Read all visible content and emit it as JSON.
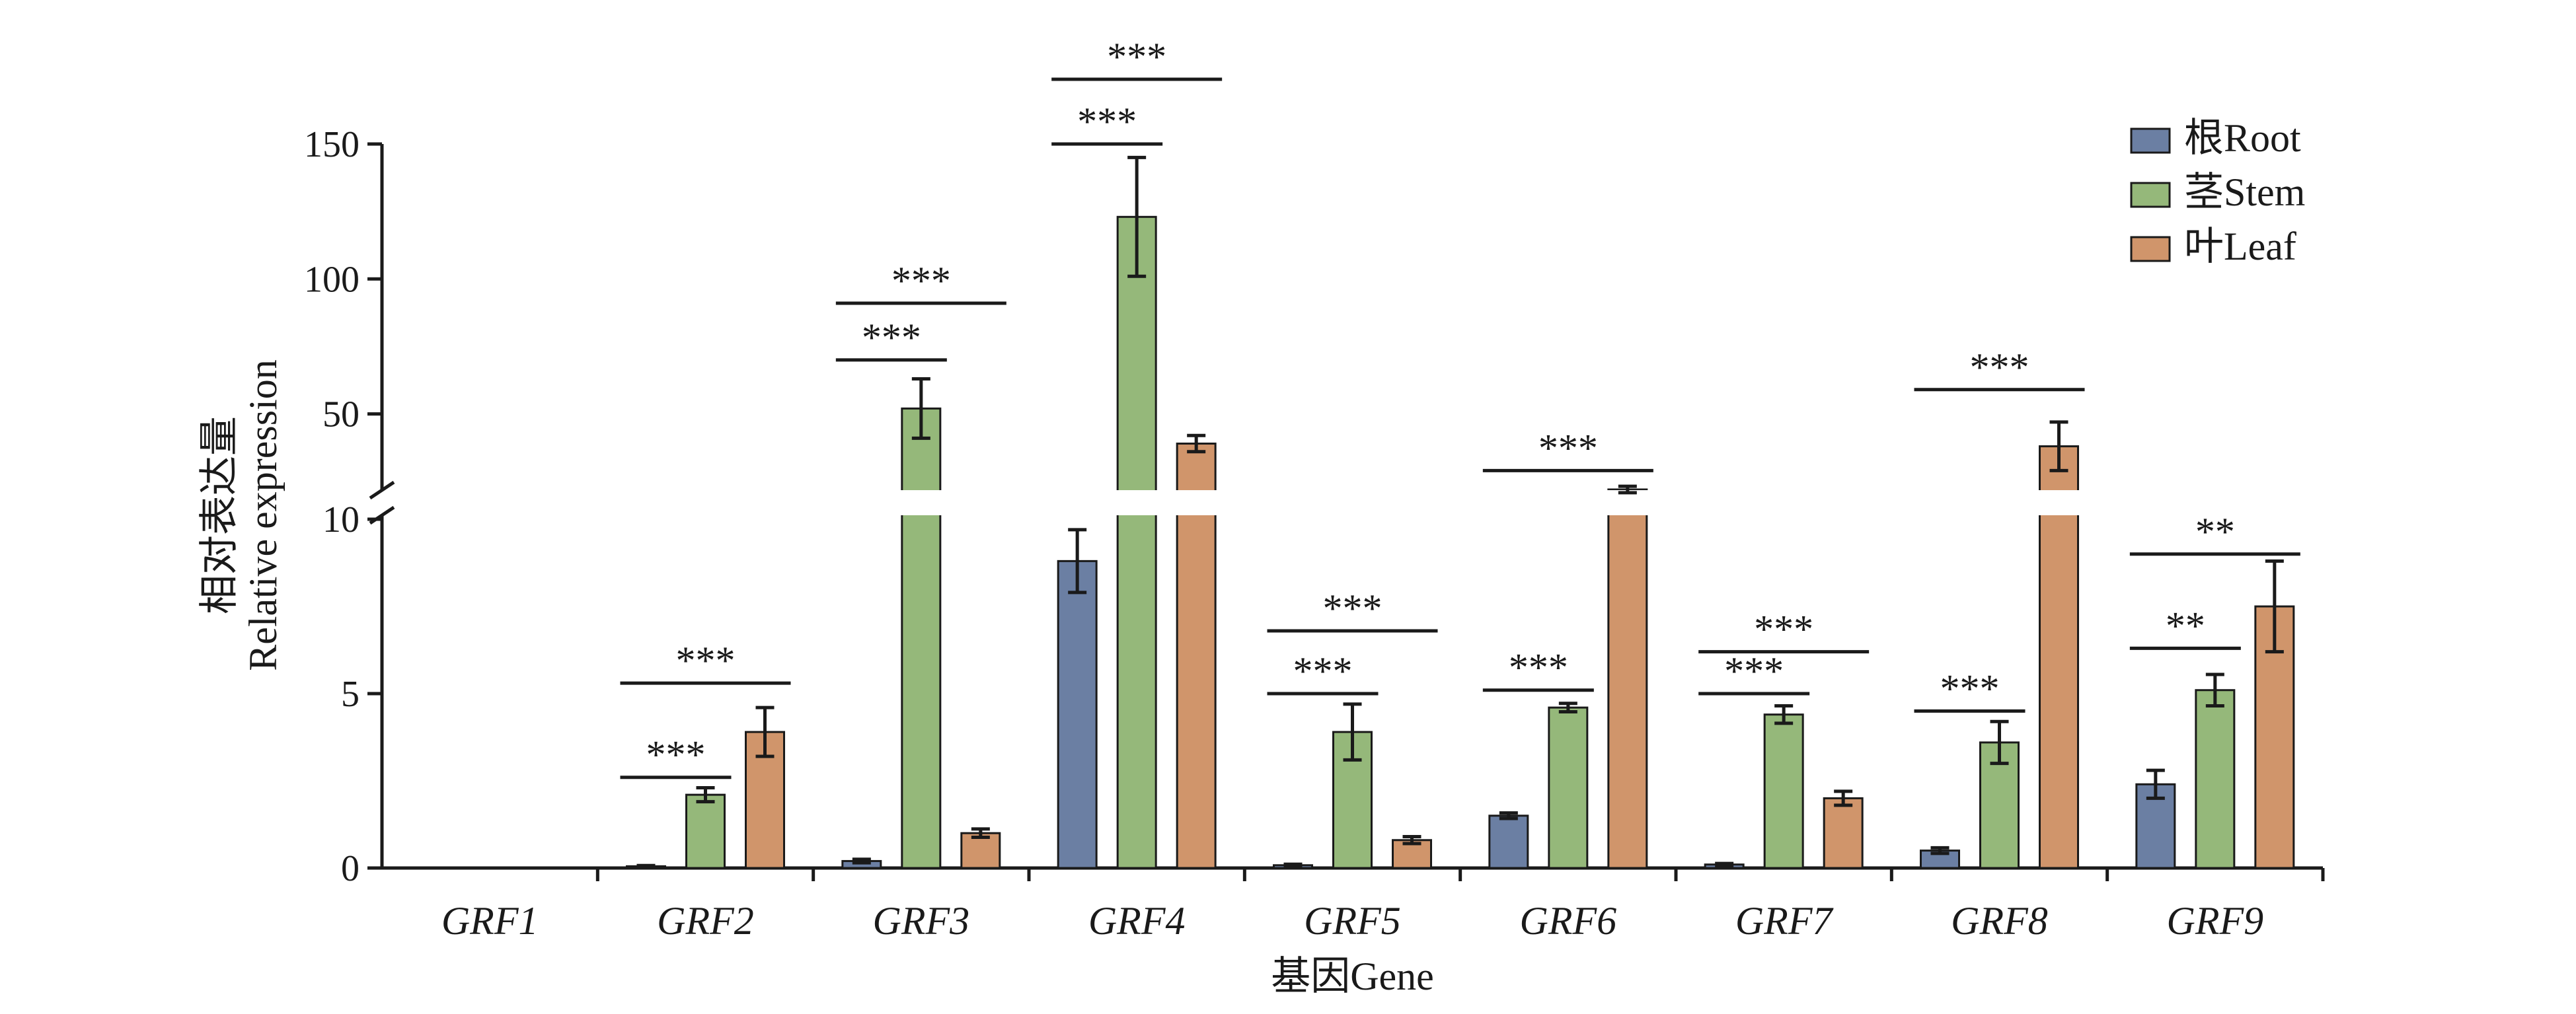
{
  "chart_data": {
    "type": "bar",
    "xlabel": "基因Gene",
    "ylabel_cn": "相对表达量",
    "ylabel_en": "Relative expression",
    "categories": [
      "GRF1",
      "GRF2",
      "GRF3",
      "GRF4",
      "GRF5",
      "GRF6",
      "GRF7",
      "GRF8",
      "GRF9"
    ],
    "y_axis": {
      "broken": true,
      "lower_range": [
        0,
        10
      ],
      "upper_range": [
        10,
        150
      ],
      "upper_ticks_shown": [
        50,
        100,
        150
      ],
      "lower_ticks": [
        0,
        5,
        10
      ],
      "tick_labels": [
        "0",
        "5",
        "10",
        "50",
        "100",
        "150"
      ]
    },
    "series": [
      {
        "name": "根Root",
        "color": "#6b7fa3",
        "values": [
          0,
          0.05,
          0.2,
          8.8,
          0.08,
          1.5,
          0.1,
          0.5,
          2.4
        ],
        "errors": [
          0,
          0.02,
          0.05,
          0.9,
          0.03,
          0.08,
          0.03,
          0.08,
          0.4
        ]
      },
      {
        "name": "茎Stem",
        "color": "#95b87a",
        "values": [
          0,
          2.1,
          52,
          123,
          3.9,
          4.6,
          4.4,
          3.6,
          5.1
        ],
        "errors": [
          0,
          0.2,
          11,
          22,
          0.8,
          0.12,
          0.25,
          0.6,
          0.45
        ]
      },
      {
        "name": "叶Leaf",
        "color": "#d0956b",
        "values": [
          0,
          3.9,
          1.0,
          39,
          0.8,
          22,
          2.0,
          38,
          7.5
        ],
        "errors": [
          0,
          0.7,
          0.12,
          3,
          0.1,
          1.2,
          0.2,
          9,
          1.3
        ]
      }
    ],
    "significance": [
      {
        "category": 1,
        "from": 0,
        "to": 1,
        "label": "***",
        "level_value": 2.6
      },
      {
        "category": 1,
        "from": 0,
        "to": 2,
        "label": "***",
        "level_value": 5.3
      },
      {
        "category": 2,
        "from": 0,
        "to": 1,
        "label": "***",
        "level_value": 70
      },
      {
        "category": 2,
        "from": 0,
        "to": 2,
        "label": "***",
        "level_value": 91
      },
      {
        "category": 3,
        "from": 0,
        "to": 1,
        "label": "***",
        "level_value": 150
      },
      {
        "category": 3,
        "from": 0,
        "to": 2,
        "label": "***",
        "level_value": 174
      },
      {
        "category": 4,
        "from": 0,
        "to": 1,
        "label": "***",
        "level_value": 5.0
      },
      {
        "category": 4,
        "from": 0,
        "to": 2,
        "label": "***",
        "level_value": 6.8
      },
      {
        "category": 5,
        "from": 0,
        "to": 1,
        "label": "***",
        "level_value": 5.1
      },
      {
        "category": 5,
        "from": 0,
        "to": 2,
        "label": "***",
        "level_value": 29
      },
      {
        "category": 6,
        "from": 0,
        "to": 1,
        "label": "***",
        "level_value": 5.0
      },
      {
        "category": 6,
        "from": 0,
        "to": 2,
        "label": "***",
        "level_value": 6.2
      },
      {
        "category": 7,
        "from": 0,
        "to": 1,
        "label": "***",
        "level_value": 4.5
      },
      {
        "category": 7,
        "from": 0,
        "to": 2,
        "label": "***",
        "level_value": 59
      },
      {
        "category": 8,
        "from": 0,
        "to": 1,
        "label": "**",
        "level_value": 6.3
      },
      {
        "category": 8,
        "from": 0,
        "to": 2,
        "label": "**",
        "level_value": 9.0
      }
    ],
    "legend_position": "top-right",
    "grid": false
  }
}
